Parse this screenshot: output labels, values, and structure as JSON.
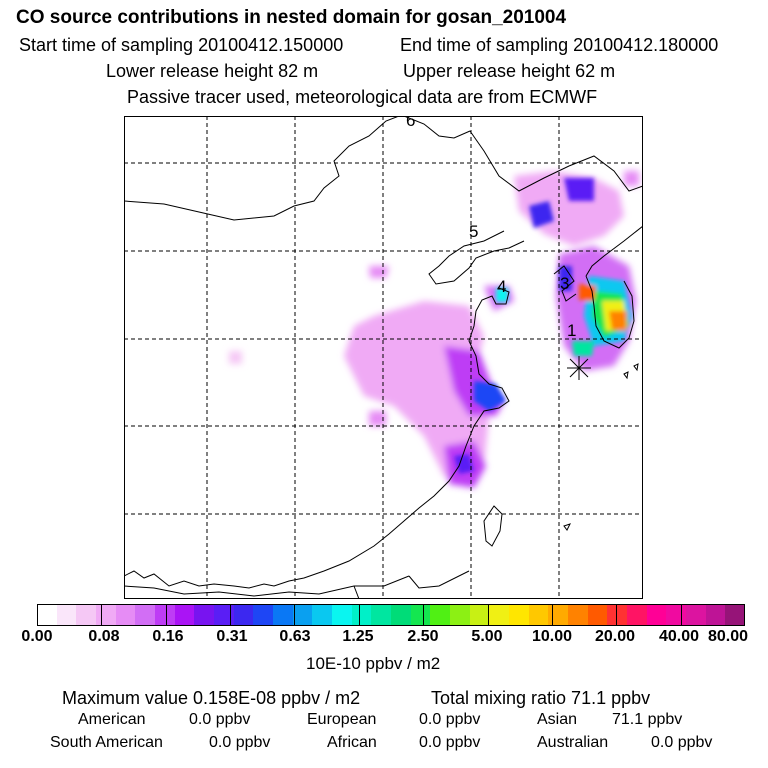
{
  "header": {
    "title": "CO  source contributions in nested domain for gosan_201004",
    "start_time": "Start time of sampling 20100412.150000",
    "end_time": "End time of sampling 20100412.180000",
    "lower_release": "Lower release height   82 m",
    "upper_release": "Upper release height   62 m",
    "tracer_note": "Passive tracer used, meteorological data are from ECMWF"
  },
  "map": {
    "labels": [
      "1",
      "3",
      "4",
      "5",
      "6"
    ],
    "receptor_marker": "asterisk"
  },
  "colorbar": {
    "colors": [
      "#ffffff",
      "#fae6fa",
      "#f5c8f5",
      "#f0aaf5",
      "#e68cf5",
      "#d26ef5",
      "#be3cf5",
      "#aa14f5",
      "#7814f0",
      "#5a1ef5",
      "#3c28f0",
      "#1e46f5",
      "#0a78f5",
      "#0aa0f0",
      "#0ac8f0",
      "#0af5f0",
      "#00f0c8",
      "#00e6a0",
      "#00dc78",
      "#14e650",
      "#50f014",
      "#8cf014",
      "#c8f014",
      "#f0f014",
      "#ffe600",
      "#ffc800",
      "#ffaa00",
      "#ff8200",
      "#ff5a00",
      "#ff3232",
      "#ff1464",
      "#ff0096",
      "#f00aa0",
      "#dc14a0",
      "#be1496",
      "#961478"
    ],
    "tick_labels": [
      "0.00",
      "0.08",
      "0.16",
      "0.31",
      "0.63",
      "1.25",
      "2.50",
      "5.00",
      "10.00",
      "20.00",
      "40.00",
      "80.00"
    ],
    "unit": "10E-10 ppbv / m2"
  },
  "footer": {
    "max_value": "Maximum value  0.158E-08 ppbv / m2",
    "total_mixing": "Total mixing ratio      71.1 ppbv",
    "american_label": "American",
    "american_value": "0.0 ppbv",
    "european_label": "European",
    "european_value": "0.0 ppbv",
    "asian_label": "Asian",
    "asian_value": "71.1 ppbv",
    "south_american_label": "South American",
    "south_american_value": "0.0 ppbv",
    "african_label": "African",
    "african_value": "0.0 ppbv",
    "australian_label": "Australian",
    "australian_value": "0.0 ppbv"
  }
}
